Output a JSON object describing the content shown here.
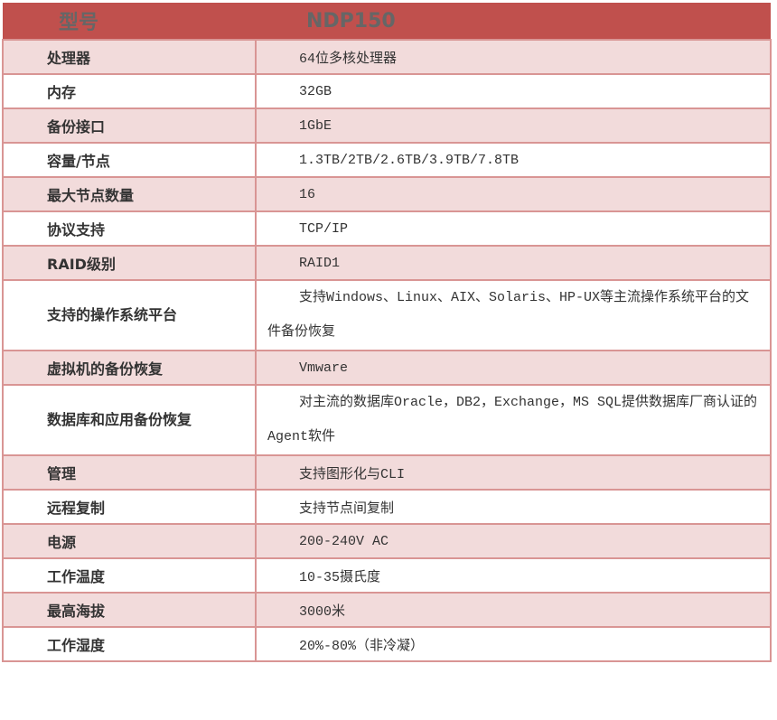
{
  "header": {
    "key": "型号",
    "value": "NDP150"
  },
  "rows": [
    {
      "key": "处理器",
      "value": "64位多核处理器"
    },
    {
      "key": "内存",
      "value": "32GB"
    },
    {
      "key": "备份接口",
      "value": "1GbE"
    },
    {
      "key": "容量/节点",
      "value": "1.3TB/2TB/2.6TB/3.9TB/7.8TB"
    },
    {
      "key": "最大节点数量",
      "value": "16"
    },
    {
      "key": "协议支持",
      "value": "TCP/IP"
    },
    {
      "key": "RAID级别",
      "value": "RAID1"
    },
    {
      "key": "支持的操作系统平台",
      "value": "支持Windows、Linux、AIX、Solaris、HP-UX等主流操作系统平台的文件备份恢复"
    },
    {
      "key": "虚拟机的备份恢复",
      "value": "Vmware"
    },
    {
      "key": "数据库和应用备份恢复",
      "value": "对主流的数据库Oracle，DB2，Exchange，MS SQL提供数据库厂商认证的Agent软件"
    },
    {
      "key": "管理",
      "value": "支持图形化与CLI"
    },
    {
      "key": "远程复制",
      "value": "支持节点间复制"
    },
    {
      "key": "电源",
      "value": "200-240V AC"
    },
    {
      "key": "工作温度",
      "value": "10-35摄氏度"
    },
    {
      "key": "最高海拔",
      "value": "3000米"
    },
    {
      "key": "工作湿度",
      "value": "20%-80%（非冷凝）"
    }
  ]
}
